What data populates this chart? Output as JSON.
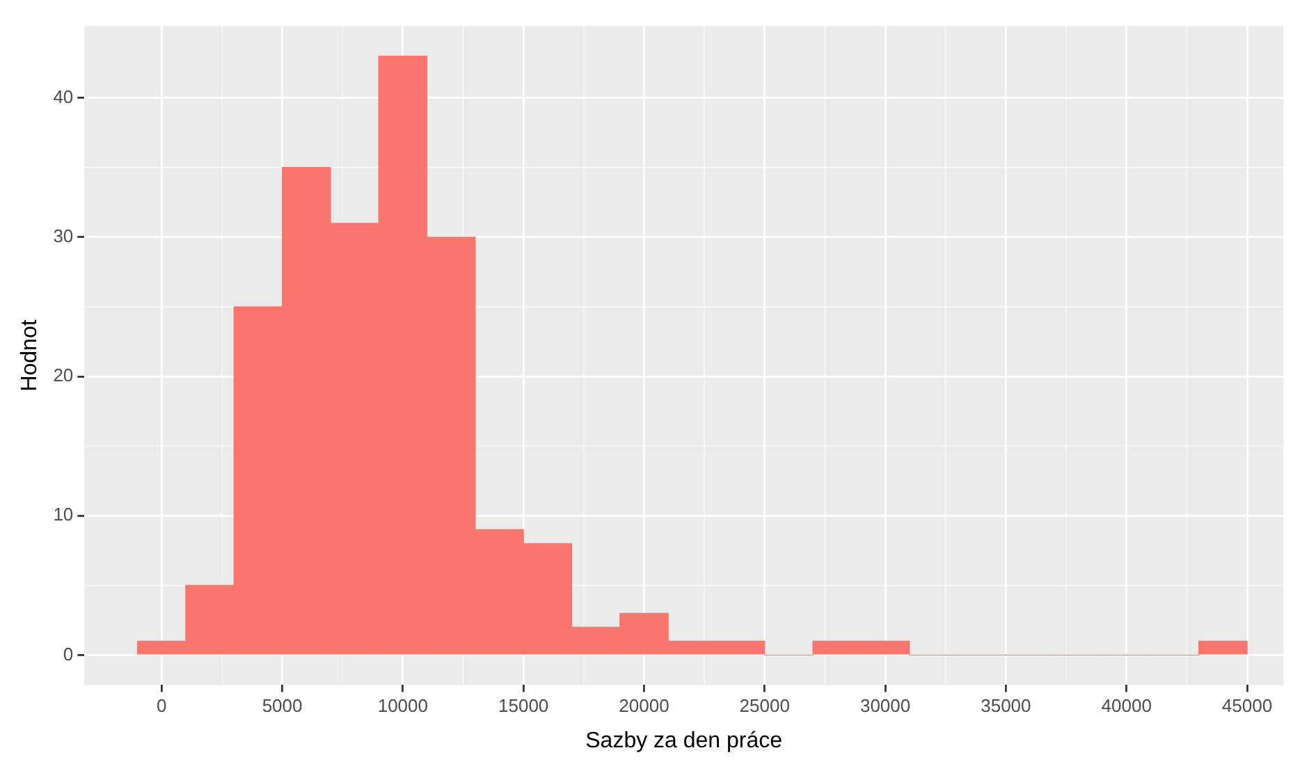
{
  "chart_data": {
    "type": "histogram",
    "xlabel": "Sazby za den práce",
    "ylabel": "Hodnot",
    "bins": [
      -1000,
      1000,
      3000,
      5000,
      7000,
      9000,
      11000,
      13000,
      15000,
      17000,
      19000,
      21000,
      23000,
      25000,
      27000,
      29000,
      31000,
      33000,
      35000,
      37000,
      39000,
      41000,
      43000,
      45000
    ],
    "values": [
      1,
      5,
      25,
      35,
      31,
      43,
      30,
      9,
      8,
      2,
      3,
      1,
      1,
      0,
      1,
      1,
      0,
      0,
      0,
      0,
      0,
      0,
      1
    ],
    "color": "#f8766d",
    "xlim": [
      -3200,
      46500
    ],
    "xticks": [
      0,
      5000,
      10000,
      15000,
      20000,
      25000,
      30000,
      35000,
      40000,
      45000
    ],
    "ylim": [
      -2.15,
      45.15
    ],
    "yticks": [
      0,
      10,
      20,
      30,
      40
    ],
    "grid": true,
    "legend": false
  }
}
